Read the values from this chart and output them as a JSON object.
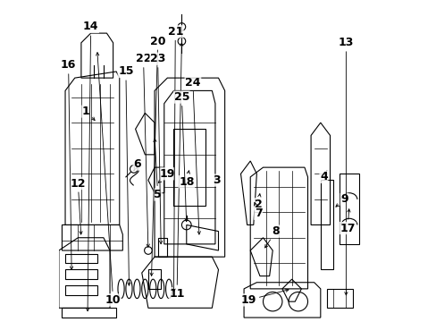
{
  "background_color": "#ffffff",
  "line_color": "#000000",
  "label_color": "#000000",
  "font_size": 9,
  "font_weight": "bold",
  "default_lw": 0.8,
  "thin_lw": 0.5
}
